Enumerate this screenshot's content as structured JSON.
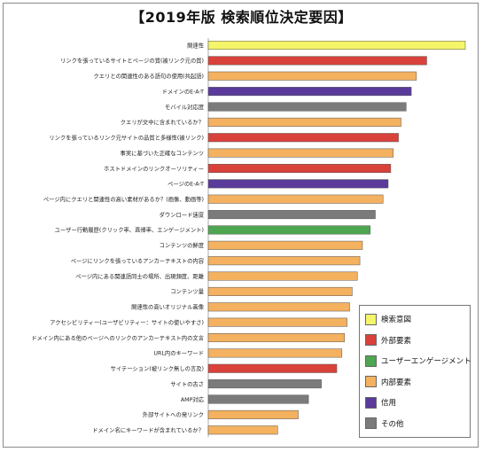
{
  "title": "【2019年版 検索順位決定要因】",
  "groups": {
    "search_intent": {
      "label": "検索意図",
      "color": "#f5f56a"
    },
    "external": {
      "label": "外部要素",
      "color": "#d9423a"
    },
    "engagement": {
      "label": "ユーザーエンゲージメント",
      "color": "#4fa651"
    },
    "internal": {
      "label": "内部要素",
      "color": "#f4b15f"
    },
    "trust": {
      "label": "信用",
      "color": "#5a3a9a"
    },
    "other": {
      "label": "その他",
      "color": "#7b7b7b"
    }
  },
  "legend": [
    "search_intent",
    "external",
    "engagement",
    "internal",
    "trust",
    "other"
  ],
  "chart_data": {
    "type": "bar",
    "orientation": "horizontal",
    "title": "【2019年版 検索順位決定要因】",
    "categories": [
      "関連性",
      "リンクを張っているサイトとページの質(被リンク元の質)",
      "クエリとの関連性のある語句の使用(共起語)",
      "ドメインのE-A-T",
      "モバイル対応度",
      "クエリが文中に含まれているか？",
      "リンクを張っているリンク元サイトの品質と多様性(被リンク)",
      "事実に基づいた正確なコンテンツ",
      "ホストドメインのリンクオーソリティー",
      "ページのE-A-T",
      "ページ内にクエリと関連性の高い素材があるか？(画像、動画等)",
      "ダウンロード速度",
      "ユーザー行動履歴(クリック率、直帰率、エンゲージメント)",
      "コンテンツの鮮度",
      "ページにリンクを張っているアンカーテキストの内容",
      "ページ内にある関連語同士の場所、出現頻度、距離",
      "コンテンツ量",
      "関連性の高いオリジナル画像",
      "アクセシビリティー(ユーザビリティー：サイトの使いやすさ)",
      "ドメイン内にある他のページへのリンクのアンカーテキスト内の文言",
      "URL内のキーワード",
      "サイテーション(被リンク無しの言及)",
      "サイトの古さ",
      "AMP対応",
      "外部サイトへの発リンク",
      "ドメイン名にキーワードが含まれているか？"
    ],
    "values": [
      100,
      85,
      81,
      79,
      77,
      75,
      74,
      72,
      71,
      70,
      68,
      65,
      63,
      60,
      59,
      58,
      56,
      55,
      54,
      53,
      52,
      50,
      44,
      39,
      35,
      27
    ],
    "groups": [
      "search_intent",
      "external",
      "internal",
      "trust",
      "other",
      "internal",
      "external",
      "internal",
      "external",
      "trust",
      "internal",
      "other",
      "engagement",
      "internal",
      "internal",
      "internal",
      "internal",
      "internal",
      "internal",
      "internal",
      "internal",
      "external",
      "other",
      "other",
      "internal",
      "internal"
    ],
    "xlim": [
      0,
      100
    ],
    "grid": false,
    "legend_position": "bottom-right"
  }
}
